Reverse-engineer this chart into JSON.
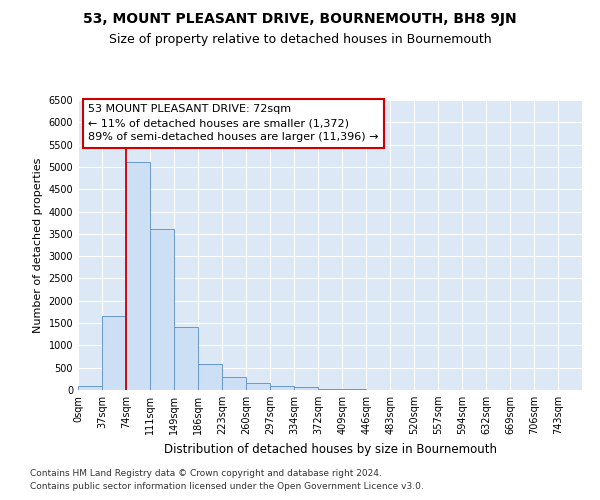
{
  "title": "53, MOUNT PLEASANT DRIVE, BOURNEMOUTH, BH8 9JN",
  "subtitle": "Size of property relative to detached houses in Bournemouth",
  "xlabel": "Distribution of detached houses by size in Bournemouth",
  "ylabel": "Number of detached properties",
  "bin_edges": [
    0,
    37,
    74,
    111,
    149,
    186,
    223,
    260,
    297,
    334,
    372,
    409,
    446,
    483,
    520,
    557,
    594,
    632,
    669,
    706,
    743
  ],
  "bar_heights": [
    100,
    1650,
    5100,
    3600,
    1420,
    590,
    300,
    155,
    100,
    60,
    30,
    20,
    10,
    0,
    0,
    0,
    0,
    0,
    0,
    0
  ],
  "bar_color": "#ccdff5",
  "bar_edge_color": "#6699cc",
  "property_line_x": 74,
  "property_line_color": "#cc0000",
  "annotation_text": "53 MOUNT PLEASANT DRIVE: 72sqm\n← 11% of detached houses are smaller (1,372)\n89% of semi-detached houses are larger (11,396) →",
  "annotation_box_color": "#cc0000",
  "ylim": [
    0,
    6500
  ],
  "yticks": [
    0,
    500,
    1000,
    1500,
    2000,
    2500,
    3000,
    3500,
    4000,
    4500,
    5000,
    5500,
    6000,
    6500
  ],
  "background_color": "#dce8f5",
  "grid_color": "#ffffff",
  "footer_line1": "Contains HM Land Registry data © Crown copyright and database right 2024.",
  "footer_line2": "Contains public sector information licensed under the Open Government Licence v3.0.",
  "title_fontsize": 10,
  "subtitle_fontsize": 9,
  "xlabel_fontsize": 8.5,
  "ylabel_fontsize": 8,
  "tick_fontsize": 7,
  "annotation_fontsize": 8,
  "footer_fontsize": 6.5
}
